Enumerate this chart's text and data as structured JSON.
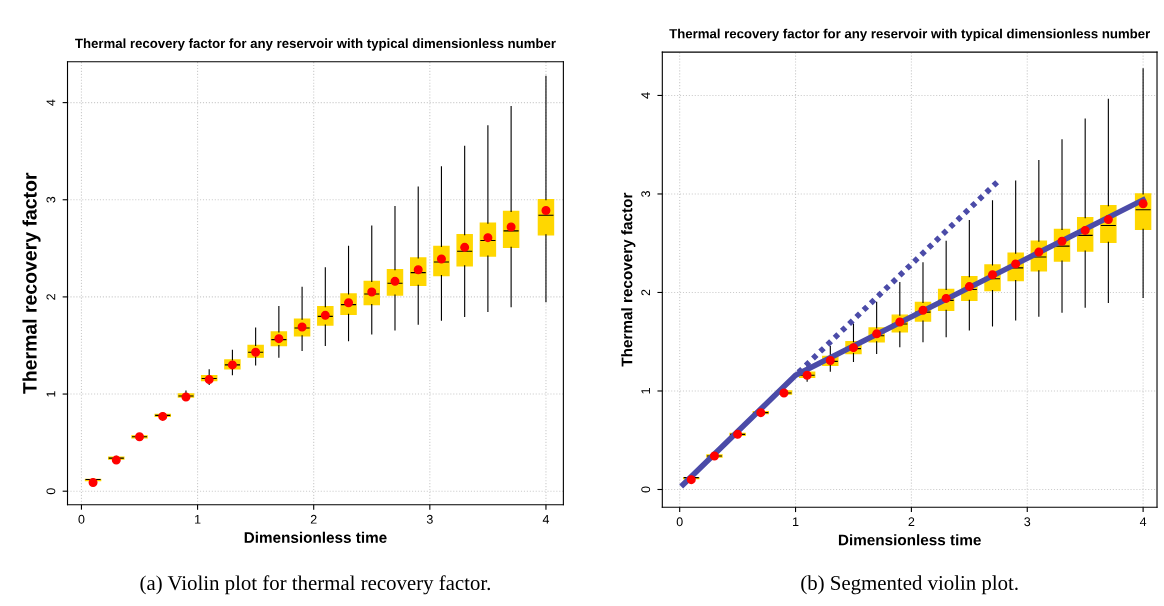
{
  "chart_data": [
    {
      "type": "box",
      "title": "Thermal recovery factor for any reservoir with typical dimensionless number",
      "xlabel": "Dimensionless time",
      "ylabel": "Thermal recovery factor",
      "color": "#ffd700",
      "x": [
        0.1,
        0.3,
        0.5,
        0.7,
        0.9,
        1.1,
        1.3,
        1.5,
        1.7,
        1.9,
        2.1,
        2.3,
        2.5,
        2.7,
        2.9,
        3.1,
        3.3,
        3.5,
        3.7,
        4.0
      ],
      "boxes": [
        {
          "low": 0.1,
          "q1": 0.11,
          "median": 0.12,
          "q3": 0.12,
          "high": 0.13
        },
        {
          "low": 0.32,
          "q1": 0.33,
          "median": 0.34,
          "q3": 0.35,
          "high": 0.36
        },
        {
          "low": 0.54,
          "q1": 0.55,
          "median": 0.56,
          "q3": 0.57,
          "high": 0.59
        },
        {
          "low": 0.76,
          "q1": 0.77,
          "median": 0.78,
          "q3": 0.79,
          "high": 0.81
        },
        {
          "low": 0.95,
          "q1": 0.97,
          "median": 0.98,
          "q3": 1.0,
          "high": 1.03
        },
        {
          "low": 1.1,
          "q1": 1.14,
          "median": 1.16,
          "q3": 1.19,
          "high": 1.25
        },
        {
          "low": 1.2,
          "q1": 1.26,
          "median": 1.3,
          "q3": 1.35,
          "high": 1.45
        },
        {
          "low": 1.3,
          "q1": 1.38,
          "median": 1.43,
          "q3": 1.5,
          "high": 1.68
        },
        {
          "low": 1.38,
          "q1": 1.5,
          "median": 1.56,
          "q3": 1.64,
          "high": 1.9
        },
        {
          "low": 1.45,
          "q1": 1.6,
          "median": 1.68,
          "q3": 1.77,
          "high": 2.1
        },
        {
          "low": 1.5,
          "q1": 1.71,
          "median": 1.8,
          "q3": 1.9,
          "high": 2.3
        },
        {
          "low": 1.55,
          "q1": 1.82,
          "median": 1.92,
          "q3": 2.03,
          "high": 2.52
        },
        {
          "low": 1.62,
          "q1": 1.92,
          "median": 2.03,
          "q3": 2.16,
          "high": 2.73
        },
        {
          "low": 1.66,
          "q1": 2.02,
          "median": 2.14,
          "q3": 2.28,
          "high": 2.93
        },
        {
          "low": 1.72,
          "q1": 2.12,
          "median": 2.25,
          "q3": 2.4,
          "high": 3.13
        },
        {
          "low": 1.76,
          "q1": 2.22,
          "median": 2.36,
          "q3": 2.52,
          "high": 3.34
        },
        {
          "low": 1.8,
          "q1": 2.32,
          "median": 2.47,
          "q3": 2.64,
          "high": 3.55
        },
        {
          "low": 1.85,
          "q1": 2.42,
          "median": 2.58,
          "q3": 2.76,
          "high": 3.76
        },
        {
          "low": 1.9,
          "q1": 2.51,
          "median": 2.68,
          "q3": 2.88,
          "high": 3.96
        },
        {
          "low": 1.95,
          "q1": 2.64,
          "median": 2.84,
          "q3": 3.0,
          "high": 4.27
        }
      ],
      "series": [
        {
          "type": "scatter",
          "color": "#ff0000",
          "marker": "circle",
          "x": [
            0.1,
            0.3,
            0.5,
            0.7,
            0.9,
            1.1,
            1.3,
            1.5,
            1.7,
            1.9,
            2.1,
            2.3,
            2.5,
            2.7,
            2.9,
            3.1,
            3.3,
            3.5,
            3.7,
            4.0
          ],
          "values": [
            0.09,
            0.32,
            0.56,
            0.77,
            0.97,
            1.15,
            1.3,
            1.43,
            1.57,
            1.69,
            1.81,
            1.94,
            2.05,
            2.16,
            2.28,
            2.39,
            2.51,
            2.61,
            2.72,
            2.89
          ]
        }
      ],
      "xlim": [
        -0.12,
        4.15
      ],
      "ylim": [
        -0.14,
        4.42
      ],
      "xticks": [
        0,
        1,
        2,
        3,
        4
      ],
      "yticks": [
        0,
        1,
        2,
        3,
        4
      ],
      "grid": true,
      "annotations": [
        "(a) Violin plot for thermal recovery factor."
      ]
    },
    {
      "type": "box",
      "title": "Thermal recovery factor for any reservoir with typical dimensionless number",
      "xlabel": "Dimensionless time",
      "ylabel": "Thermal recovery factor",
      "color": "#ffd700",
      "x": [
        0.1,
        0.3,
        0.5,
        0.7,
        0.9,
        1.1,
        1.3,
        1.5,
        1.7,
        1.9,
        2.1,
        2.3,
        2.5,
        2.7,
        2.9,
        3.1,
        3.3,
        3.5,
        3.7,
        4.0
      ],
      "boxes": [
        {
          "low": 0.1,
          "q1": 0.11,
          "median": 0.12,
          "q3": 0.12,
          "high": 0.13
        },
        {
          "low": 0.32,
          "q1": 0.33,
          "median": 0.34,
          "q3": 0.35,
          "high": 0.36
        },
        {
          "low": 0.54,
          "q1": 0.55,
          "median": 0.56,
          "q3": 0.57,
          "high": 0.59
        },
        {
          "low": 0.76,
          "q1": 0.77,
          "median": 0.78,
          "q3": 0.79,
          "high": 0.81
        },
        {
          "low": 0.95,
          "q1": 0.97,
          "median": 0.98,
          "q3": 1.0,
          "high": 1.03
        },
        {
          "low": 1.1,
          "q1": 1.14,
          "median": 1.16,
          "q3": 1.19,
          "high": 1.25
        },
        {
          "low": 1.2,
          "q1": 1.26,
          "median": 1.3,
          "q3": 1.35,
          "high": 1.45
        },
        {
          "low": 1.3,
          "q1": 1.38,
          "median": 1.43,
          "q3": 1.5,
          "high": 1.68
        },
        {
          "low": 1.38,
          "q1": 1.5,
          "median": 1.56,
          "q3": 1.64,
          "high": 1.9
        },
        {
          "low": 1.45,
          "q1": 1.6,
          "median": 1.68,
          "q3": 1.77,
          "high": 2.1
        },
        {
          "low": 1.5,
          "q1": 1.71,
          "median": 1.8,
          "q3": 1.9,
          "high": 2.3
        },
        {
          "low": 1.55,
          "q1": 1.82,
          "median": 1.92,
          "q3": 2.03,
          "high": 2.52
        },
        {
          "low": 1.62,
          "q1": 1.92,
          "median": 2.03,
          "q3": 2.16,
          "high": 2.73
        },
        {
          "low": 1.66,
          "q1": 2.02,
          "median": 2.14,
          "q3": 2.28,
          "high": 2.93
        },
        {
          "low": 1.72,
          "q1": 2.12,
          "median": 2.25,
          "q3": 2.4,
          "high": 3.13
        },
        {
          "low": 1.76,
          "q1": 2.22,
          "median": 2.36,
          "q3": 2.52,
          "high": 3.34
        },
        {
          "low": 1.8,
          "q1": 2.32,
          "median": 2.47,
          "q3": 2.64,
          "high": 3.55
        },
        {
          "low": 1.85,
          "q1": 2.42,
          "median": 2.58,
          "q3": 2.76,
          "high": 3.76
        },
        {
          "low": 1.9,
          "q1": 2.51,
          "median": 2.68,
          "q3": 2.88,
          "high": 3.96
        },
        {
          "low": 1.95,
          "q1": 2.64,
          "median": 2.84,
          "q3": 3.0,
          "high": 4.27
        }
      ],
      "series": [
        {
          "type": "scatter",
          "color": "#ff0000",
          "marker": "circle",
          "x": [
            0.1,
            0.3,
            0.5,
            0.7,
            0.9,
            1.1,
            1.3,
            1.5,
            1.7,
            1.9,
            2.1,
            2.3,
            2.5,
            2.7,
            2.9,
            3.1,
            3.3,
            3.5,
            3.7,
            4.0
          ],
          "values": [
            0.1,
            0.34,
            0.56,
            0.78,
            0.98,
            1.16,
            1.31,
            1.44,
            1.58,
            1.7,
            1.82,
            1.94,
            2.06,
            2.18,
            2.29,
            2.41,
            2.52,
            2.63,
            2.74,
            2.9
          ]
        },
        {
          "type": "line",
          "color": "#4b4ba8",
          "line_style": "solid",
          "x": [
            0.03,
            1.0,
            4.0
          ],
          "values": [
            0.05,
            1.16,
            2.94
          ]
        },
        {
          "type": "line",
          "color": "#4b4ba8",
          "line_style": "dotted",
          "x": [
            1.0,
            2.74
          ],
          "values": [
            1.16,
            3.12
          ]
        }
      ],
      "xlim": [
        -0.15,
        4.12
      ],
      "ylim": [
        -0.18,
        4.44
      ],
      "xticks": [
        0,
        1,
        2,
        3,
        4
      ],
      "yticks": [
        0,
        1,
        2,
        3,
        4
      ],
      "grid": true,
      "annotations": [
        "(b) Segmented violin plot."
      ]
    }
  ]
}
